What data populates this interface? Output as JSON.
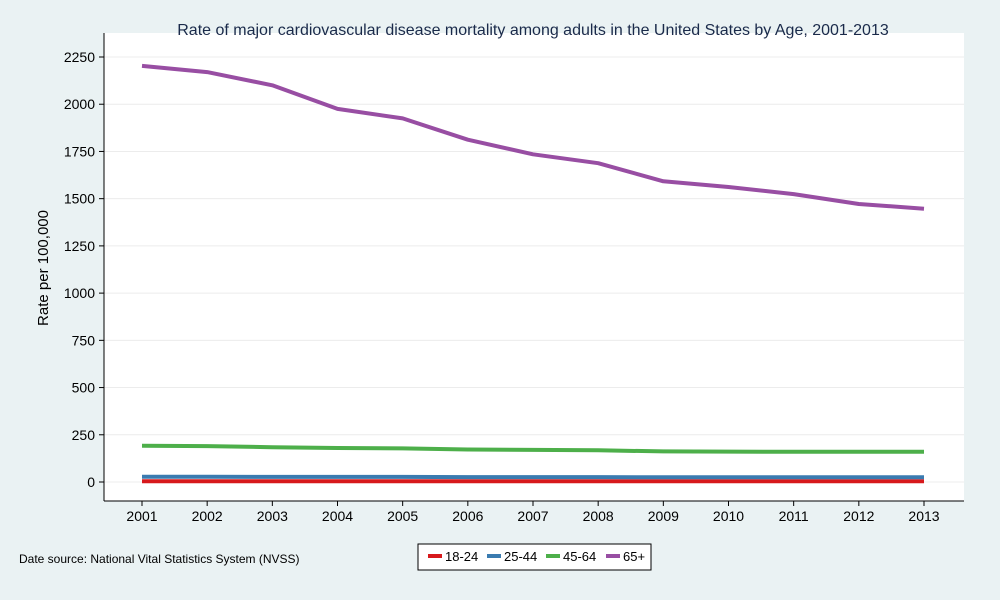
{
  "chart_data": {
    "type": "line",
    "title": "Rate of major cardiovascular disease mortality among adults in the United States by Age, 2001-2013",
    "xlabel": "",
    "ylabel": "Rate per 100,000",
    "x": [
      "2001",
      "2002",
      "2003",
      "2004",
      "2005",
      "2006",
      "2007",
      "2008",
      "2009",
      "2010",
      "2011",
      "2012",
      "2013"
    ],
    "yticks": [
      0,
      250,
      500,
      750,
      1000,
      1250,
      1500,
      1750,
      2000,
      2250
    ],
    "ylim": [
      -100,
      2350
    ],
    "grid": true,
    "legend_position": "bottom",
    "series": [
      {
        "name": "18-24",
        "color": "#d7191c",
        "values": [
          4,
          4,
          4,
          4,
          4,
          4,
          4,
          4,
          4,
          4,
          4,
          4,
          4
        ]
      },
      {
        "name": "25-44",
        "color": "#3a7bb0",
        "values": [
          28,
          28,
          27,
          27,
          27,
          26,
          26,
          26,
          25,
          25,
          25,
          25,
          25
        ]
      },
      {
        "name": "45-64",
        "color": "#4daf4a",
        "values": [
          192,
          190,
          184,
          180,
          178,
          172,
          170,
          168,
          162,
          161,
          160,
          160,
          160
        ]
      },
      {
        "name": "65+",
        "color": "#984ea3",
        "values": [
          2203,
          2170,
          2100,
          1975,
          1925,
          1812,
          1735,
          1688,
          1592,
          1562,
          1524,
          1472,
          1447
        ]
      }
    ]
  },
  "footnote": "Date source: National Vital Statistics System (NVSS)"
}
